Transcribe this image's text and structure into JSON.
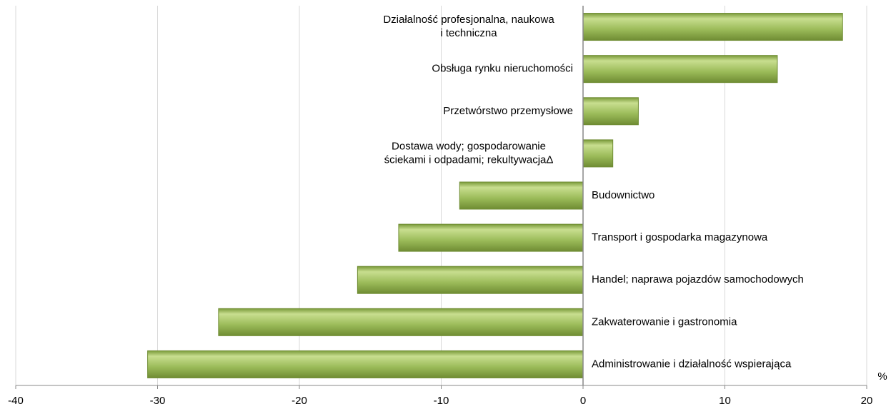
{
  "chart_data": {
    "type": "bar",
    "orientation": "horizontal",
    "categories": [
      "Działalność profesjonalna, naukowa\ni techniczna",
      "Obsługa rynku nieruchomości",
      "Przetwórstwo przemysłowe",
      "Dostawa wody; gospodarowanie\nściekami i odpadami; rekultywacjaΔ",
      "Budownictwo",
      "Transport i gospodarka magazynowa",
      "Handel; naprawa pojazdów samochodowych",
      "Zakwaterowanie i gastronomia",
      "Administrowanie i działalność wspierająca"
    ],
    "values": [
      18.3,
      13.7,
      3.9,
      2.1,
      -8.7,
      -13.0,
      -15.9,
      -25.7,
      -30.7
    ],
    "color": "#9bbb59",
    "xlim": [
      -40,
      20
    ],
    "xticks": [
      -40,
      -30,
      -20,
      -10,
      0,
      10,
      20
    ],
    "x_unit": "%",
    "grid": true
  }
}
